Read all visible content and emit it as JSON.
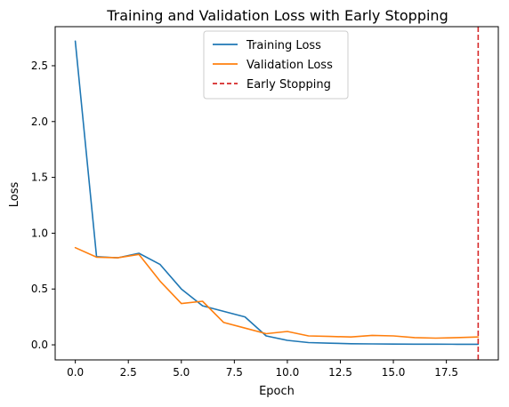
{
  "chart_data": {
    "type": "line",
    "title": "Training and Validation Loss with Early Stopping",
    "xlabel": "Epoch",
    "ylabel": "Loss",
    "xlim": [
      -0.95,
      19.95
    ],
    "ylim": [
      -0.135,
      2.85
    ],
    "xticks": [
      0,
      2.5,
      5,
      7.5,
      10,
      12.5,
      15,
      17.5
    ],
    "xtick_labels": [
      "0.0",
      "2.5",
      "5.0",
      "7.5",
      "10.0",
      "12.5",
      "15.0",
      "17.5"
    ],
    "yticks": [
      0,
      0.5,
      1,
      1.5,
      2,
      2.5
    ],
    "ytick_labels": [
      "0.0",
      "0.5",
      "1.0",
      "1.5",
      "2.0",
      "2.5"
    ],
    "grid": false,
    "legend_position": "upper-center",
    "x": [
      0,
      1,
      2,
      3,
      4,
      5,
      6,
      7,
      8,
      9,
      10,
      11,
      12,
      13,
      14,
      15,
      16,
      17,
      18,
      19
    ],
    "series": [
      {
        "name": "Training Loss",
        "color": "#1f77b4",
        "style": "solid",
        "values": [
          2.72,
          0.79,
          0.78,
          0.82,
          0.72,
          0.5,
          0.35,
          0.3,
          0.25,
          0.08,
          0.04,
          0.02,
          0.015,
          0.01,
          0.008,
          0.007,
          0.006,
          0.006,
          0.005,
          0.005
        ]
      },
      {
        "name": "Validation Loss",
        "color": "#ff7f0e",
        "style": "solid",
        "values": [
          0.87,
          0.785,
          0.78,
          0.81,
          0.57,
          0.37,
          0.39,
          0.2,
          0.15,
          0.1,
          0.12,
          0.08,
          0.075,
          0.07,
          0.085,
          0.08,
          0.065,
          0.06,
          0.065,
          0.07
        ]
      }
    ],
    "vlines": [
      {
        "name": "Early Stopping",
        "x": 19,
        "color": "#d62728",
        "style": "dashed"
      }
    ]
  }
}
